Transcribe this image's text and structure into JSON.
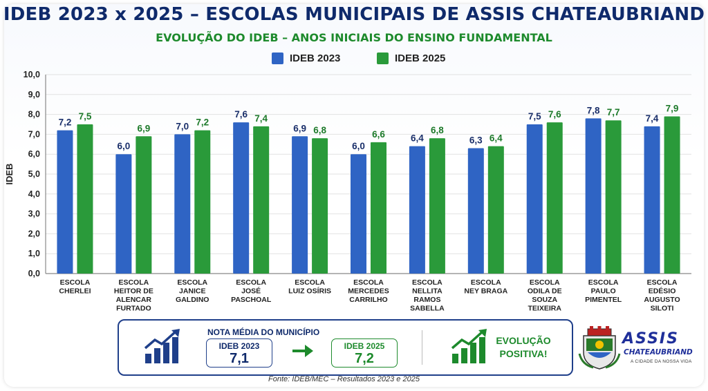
{
  "chart_data": {
    "type": "bar",
    "title": "IDEB 2023 x 2025 – ESCOLAS MUNICIPAIS DE ASSIS CHATEAUBRIAND",
    "subtitle": "EVOLUÇÃO DO IDEB – ANOS INICIAIS DO ENSINO FUNDAMENTAL",
    "ylabel": "IDEB",
    "ylim": [
      0,
      10
    ],
    "yticks": [
      "0,0",
      "1,0",
      "2,0",
      "3,0",
      "4,0",
      "5,0",
      "6,0",
      "7,0",
      "8,0",
      "9,0",
      "10,0"
    ],
    "grid": true,
    "legend_position": "top-center",
    "categories": [
      [
        "ESCOLA",
        "CHERLEI"
      ],
      [
        "ESCOLA",
        "HEITOR DE",
        "ALENCAR",
        "FURTADO"
      ],
      [
        "ESCOLA",
        "JANICE",
        "GALDINO"
      ],
      [
        "ESCOLA",
        "JOSÉ",
        "PASCHOAL"
      ],
      [
        "ESCOLA",
        "LUIZ OSÍRIS"
      ],
      [
        "ESCOLA",
        "MERCEDES",
        "CARRILHO"
      ],
      [
        "ESCOLA",
        "NELLITA",
        "RAMOS",
        "SABELLA"
      ],
      [
        "ESCOLA",
        "NEY BRAGA"
      ],
      [
        "ESCOLA",
        "ODILA DE",
        "SOUZA",
        "TEIXEIRA"
      ],
      [
        "ESCOLA",
        "PAULO",
        "PIMENTEL"
      ],
      [
        "ESCOLA",
        "EDÉSIO",
        "AUGUSTO",
        "SILOTI"
      ]
    ],
    "series": [
      {
        "name": "IDEB 2023",
        "color": "#2f64c4",
        "values": [
          7.2,
          6.0,
          7.0,
          7.6,
          6.9,
          6.0,
          6.4,
          6.3,
          7.5,
          7.8,
          7.4
        ],
        "labels": [
          "7,2",
          "6,0",
          "7,0",
          "7,6",
          "6,9",
          "6,0",
          "6,4",
          "6,3",
          "7,5",
          "7,8",
          "7,4"
        ]
      },
      {
        "name": "IDEB 2025",
        "color": "#2a9a3a",
        "values": [
          7.5,
          6.9,
          7.2,
          7.4,
          6.8,
          6.6,
          6.8,
          6.4,
          7.6,
          7.7,
          7.9
        ],
        "labels": [
          "7,5",
          "6,9",
          "7,2",
          "7,4",
          "6,8",
          "6,6",
          "6,8",
          "6,4",
          "7,6",
          "7,7",
          "7,9"
        ]
      }
    ]
  },
  "summary": {
    "title": "NOTA MÉDIA DO MUNICÍPIO",
    "label_2023": "IDEB 2023",
    "value_2023": "7,1",
    "label_2025": "IDEB 2025",
    "value_2025": "7,2",
    "evolution_line1": "EVOLUÇÃO",
    "evolution_line2": "POSITIVA!",
    "icon_left": "bar-chart-growth-icon",
    "icon_right": "bar-chart-growth-icon"
  },
  "source": "Fonte: IDEB/MEC – Resultados 2023 e 2025",
  "logo": {
    "name": "ASSIS",
    "sub": "CHATEAUBRIAND",
    "tagline": "A CIDADE DA NOSSA VIDA"
  },
  "colors": {
    "navy": "#0f2a6b",
    "green": "#1d8a2c",
    "blue": "#2f64c4",
    "bar_green": "#2a9a3a"
  }
}
